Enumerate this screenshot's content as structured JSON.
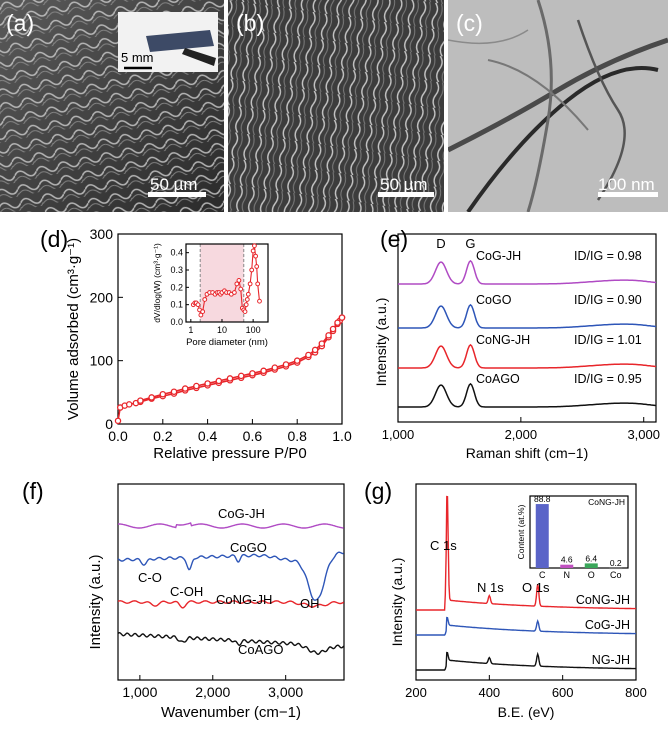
{
  "figure": {
    "panel_a": {
      "label": "(a)",
      "scalebar": "50 µm",
      "inset_scalebar": "5 mm"
    },
    "panel_b": {
      "label": "(b)",
      "scalebar": "50 µm"
    },
    "panel_c": {
      "label": "(c)",
      "scalebar": "100 nm"
    },
    "panel_d": {
      "label": "(d)"
    },
    "panel_e": {
      "label": "(e)"
    },
    "panel_f": {
      "label": "(f)"
    },
    "panel_g": {
      "label": "(g)"
    }
  },
  "chart_data": [
    {
      "id": "d",
      "type": "line",
      "xlabel": "Relative pressure P/P0",
      "ylabel": "Volume adsorbed (cm³·g⁻¹)",
      "xlim": [
        0,
        1.0
      ],
      "ylim": [
        0,
        300
      ],
      "xticks": [
        0.0,
        0.2,
        0.4,
        0.6,
        0.8,
        1.0
      ],
      "xtick_labels": [
        "0.0",
        "0.2",
        "0.4",
        "0.6",
        "0.8",
        "1.0"
      ],
      "yticks": [
        0,
        100,
        200,
        300
      ],
      "ytick_labels": [
        "0",
        "100",
        "200",
        "300"
      ],
      "color": "#e8262b",
      "series": [
        {
          "x": [
            0.0,
            0.01,
            0.03,
            0.05,
            0.08,
            0.1,
            0.15,
            0.2,
            0.25,
            0.3,
            0.35,
            0.4,
            0.45,
            0.5,
            0.55,
            0.6,
            0.65,
            0.7,
            0.75,
            0.8,
            0.85,
            0.88,
            0.91,
            0.94,
            0.96,
            0.98,
            0.99,
            1.0
          ],
          "values": [
            5,
            26,
            29,
            31,
            33,
            35,
            40,
            44,
            48,
            53,
            57,
            61,
            65,
            69,
            73,
            77,
            81,
            86,
            91,
            97,
            106,
            113,
            123,
            137,
            147,
            158,
            163,
            168
          ]
        },
        {
          "x": [
            1.0,
            0.98,
            0.96,
            0.94,
            0.91,
            0.88,
            0.85,
            0.8,
            0.75,
            0.7,
            0.65,
            0.6,
            0.55,
            0.5,
            0.45,
            0.4,
            0.35,
            0.3,
            0.25,
            0.2,
            0.15,
            0.1
          ],
          "values": [
            168,
            160,
            150,
            140,
            127,
            117,
            109,
            100,
            94,
            89,
            84,
            80,
            76,
            72,
            68,
            64,
            60,
            56,
            51,
            47,
            42,
            37
          ]
        }
      ],
      "inset": {
        "xlabel": "Pore diameter (nm)",
        "ylabel": "dV/dlog(W) (cm³·g⁻¹)",
        "xscale": "log",
        "xlim": [
          0.7,
          300
        ],
        "ylim": [
          0,
          0.45
        ],
        "xticks": [
          1,
          10,
          100
        ],
        "xtick_labels": [
          "1",
          "10",
          "100"
        ],
        "yticks": [
          0,
          0.1,
          0.2,
          0.3,
          0.4
        ],
        "ytick_labels": [
          "0.0",
          "0.1",
          "0.2",
          "0.3",
          "0.4"
        ],
        "shaded_range": [
          2,
          50
        ],
        "x": [
          1.2,
          1.35,
          1.5,
          1.7,
          1.9,
          2.1,
          2.4,
          2.8,
          3.3,
          4,
          5,
          6,
          7,
          8,
          9,
          10,
          12,
          14,
          17,
          20,
          25,
          30,
          35,
          40,
          45,
          50,
          55,
          60,
          65,
          70,
          80,
          90,
          100,
          110,
          120,
          130,
          140,
          160
        ],
        "values": [
          0.1,
          0.11,
          0.11,
          0.1,
          0.07,
          0.04,
          0.06,
          0.13,
          0.16,
          0.17,
          0.17,
          0.16,
          0.17,
          0.17,
          0.16,
          0.17,
          0.18,
          0.17,
          0.17,
          0.16,
          0.17,
          0.22,
          0.24,
          0.19,
          0.08,
          0.07,
          0.06,
          0.1,
          0.13,
          0.16,
          0.22,
          0.3,
          0.41,
          0.44,
          0.38,
          0.32,
          0.22,
          0.12
        ]
      }
    },
    {
      "id": "e",
      "type": "line",
      "xlabel": "Raman shift (cm−1)",
      "ylabel": "Intensity (a.u.)",
      "xlim": [
        1000,
        3100
      ],
      "xticks": [
        1000,
        2000,
        3000
      ],
      "xtick_labels": [
        "1,000",
        "2,000",
        "3,000"
      ],
      "peak_labels": [
        {
          "text": "D",
          "x": 1350
        },
        {
          "text": "G",
          "x": 1590
        }
      ],
      "series": [
        {
          "name": "CoG-JH",
          "ratio_label": "ID/IG = 0.98",
          "color": "#b04bc4"
        },
        {
          "name": "CoGO",
          "ratio_label": "ID/IG = 0.90",
          "color": "#2e56b8"
        },
        {
          "name": "CoNG-JH",
          "ratio_label": "ID/IG = 1.01",
          "color": "#e8262b"
        },
        {
          "name": "CoAGO",
          "ratio_label": "ID/IG = 0.95",
          "color": "#111111"
        }
      ]
    },
    {
      "id": "f",
      "type": "line",
      "xlabel": "Wavenumber (cm−1)",
      "ylabel": "Intensity (a.u.)",
      "xlim": [
        700,
        3800
      ],
      "xticks": [
        1000,
        2000,
        3000
      ],
      "xtick_labels": [
        "1,000",
        "2,000",
        "3,000"
      ],
      "annotations": [
        "C-O",
        "C-OH",
        "OH"
      ],
      "series": [
        {
          "name": "CoG-JH",
          "color": "#b04bc4"
        },
        {
          "name": "CoGO",
          "color": "#2e56b8"
        },
        {
          "name": "CoNG-JH",
          "color": "#e8262b"
        },
        {
          "name": "CoAGO",
          "color": "#111111"
        }
      ]
    },
    {
      "id": "g",
      "type": "line",
      "xlabel": "B.E. (eV)",
      "ylabel": "Intensity (a.u.)",
      "xlim": [
        200,
        800
      ],
      "xticks": [
        200,
        400,
        600,
        800
      ],
      "xtick_labels": [
        "200",
        "400",
        "600",
        "800"
      ],
      "peak_labels": [
        "C 1s",
        "N 1s",
        "O 1s"
      ],
      "series": [
        {
          "name": "CoNG-JH",
          "color": "#e8262b"
        },
        {
          "name": "CoG-JH",
          "color": "#2e56b8"
        },
        {
          "name": "NG-JH",
          "color": "#111111"
        }
      ],
      "inset": {
        "type": "bar",
        "title": "CoNG-JH",
        "ylabel": "Content (at.%)",
        "categories": [
          "C",
          "N",
          "O",
          "Co"
        ],
        "values": [
          88.8,
          4.6,
          6.4,
          0.2
        ],
        "value_labels": [
          "88.8",
          "4.6",
          "6.4",
          "0.2"
        ],
        "colors": [
          "#5a64c8",
          "#c050c0",
          "#3aa65a",
          "#777777"
        ]
      }
    }
  ]
}
